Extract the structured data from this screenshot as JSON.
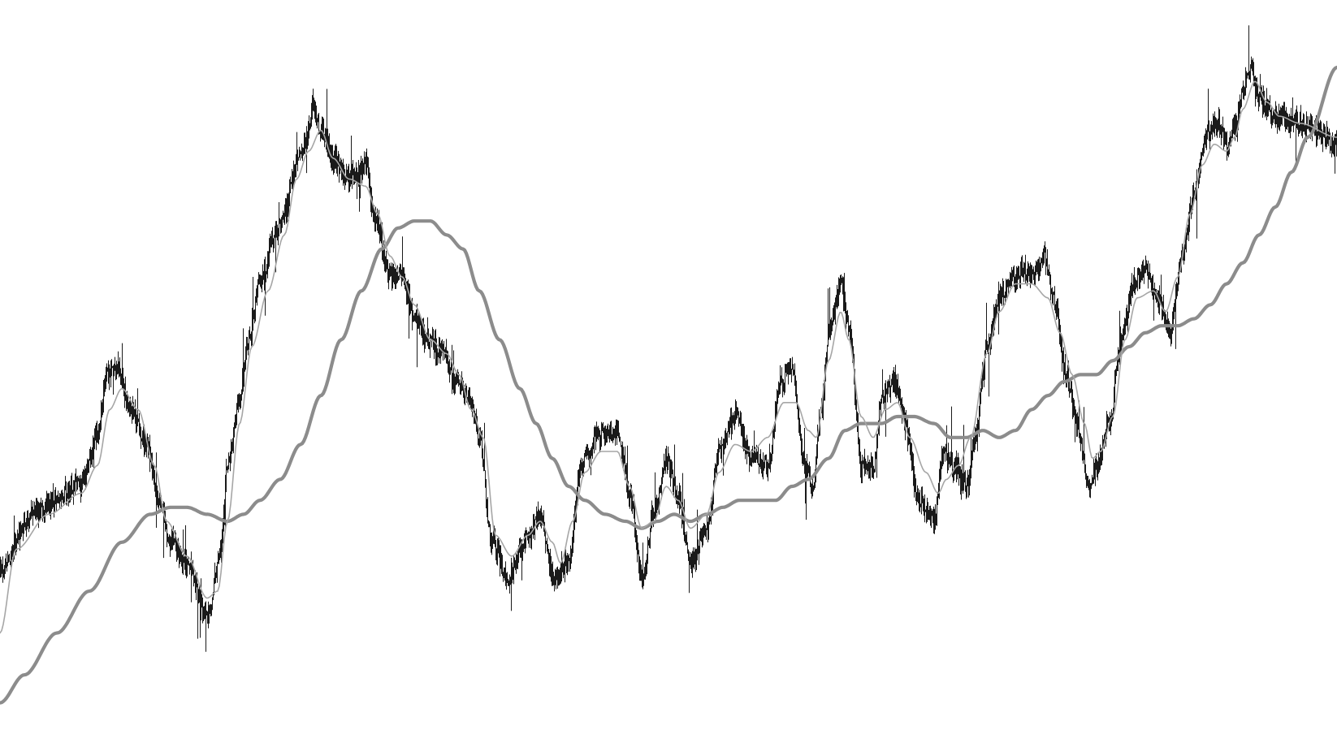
{
  "colors": {
    "background": "#ffffff",
    "bars": "#000000",
    "fast_ma": "#a6a6a6",
    "slow_ma": "#8c8c8c"
  },
  "chart_data": {
    "type": "line",
    "title": "",
    "xlabel": "",
    "ylabel": "",
    "grid": false,
    "legend": "none",
    "ylim": [
      0,
      100
    ],
    "x_count": 1646,
    "anchors": {
      "price": [
        [
          0,
          23
        ],
        [
          40,
          31
        ],
        [
          80,
          34
        ],
        [
          100,
          36
        ],
        [
          120,
          42
        ],
        [
          130,
          51
        ],
        [
          145,
          52
        ],
        [
          160,
          46
        ],
        [
          180,
          41
        ],
        [
          195,
          33
        ],
        [
          210,
          27
        ],
        [
          230,
          24
        ],
        [
          255,
          16
        ],
        [
          270,
          25
        ],
        [
          280,
          38
        ],
        [
          295,
          48
        ],
        [
          305,
          56
        ],
        [
          320,
          64
        ],
        [
          335,
          70
        ],
        [
          350,
          74
        ],
        [
          362,
          80
        ],
        [
          372,
          83
        ],
        [
          385,
          89
        ],
        [
          395,
          86
        ],
        [
          410,
          82
        ],
        [
          430,
          79
        ],
        [
          450,
          81
        ],
        [
          462,
          73
        ],
        [
          480,
          65
        ],
        [
          495,
          65
        ],
        [
          510,
          59
        ],
        [
          525,
          56
        ],
        [
          545,
          54
        ],
        [
          560,
          50
        ],
        [
          575,
          48
        ],
        [
          590,
          42
        ],
        [
          605,
          27
        ],
        [
          625,
          22
        ],
        [
          645,
          27
        ],
        [
          665,
          31
        ],
        [
          680,
          22
        ],
        [
          700,
          24
        ],
        [
          715,
          38
        ],
        [
          735,
          42
        ],
        [
          760,
          43
        ],
        [
          775,
          34
        ],
        [
          790,
          22
        ],
        [
          805,
          31
        ],
        [
          820,
          39
        ],
        [
          835,
          33
        ],
        [
          850,
          24
        ],
        [
          870,
          29
        ],
        [
          885,
          40
        ],
        [
          905,
          45
        ],
        [
          925,
          39
        ],
        [
          945,
          38
        ],
        [
          960,
          50
        ],
        [
          975,
          52
        ],
        [
          990,
          38
        ],
        [
          1000,
          35
        ],
        [
          1010,
          46
        ],
        [
          1020,
          57
        ],
        [
          1035,
          64
        ],
        [
          1045,
          58
        ],
        [
          1060,
          38
        ],
        [
          1075,
          37
        ],
        [
          1085,
          48
        ],
        [
          1100,
          50
        ],
        [
          1115,
          44
        ],
        [
          1130,
          33
        ],
        [
          1150,
          30
        ],
        [
          1160,
          40
        ],
        [
          1175,
          38
        ],
        [
          1190,
          35
        ],
        [
          1200,
          42
        ],
        [
          1215,
          55
        ],
        [
          1230,
          62
        ],
        [
          1245,
          65
        ],
        [
          1260,
          66
        ],
        [
          1270,
          65
        ],
        [
          1285,
          68
        ],
        [
          1300,
          61
        ],
        [
          1310,
          52
        ],
        [
          1325,
          44
        ],
        [
          1340,
          35
        ],
        [
          1350,
          38
        ],
        [
          1365,
          44
        ],
        [
          1380,
          56
        ],
        [
          1395,
          64
        ],
        [
          1410,
          66
        ],
        [
          1425,
          62
        ],
        [
          1440,
          57
        ],
        [
          1455,
          68
        ],
        [
          1470,
          77
        ],
        [
          1485,
          85
        ],
        [
          1500,
          87
        ],
        [
          1510,
          84
        ],
        [
          1520,
          86
        ],
        [
          1530,
          92
        ],
        [
          1540,
          95
        ],
        [
          1550,
          91
        ],
        [
          1560,
          89
        ],
        [
          1570,
          88
        ],
        [
          1600,
          87
        ],
        [
          1646,
          84
        ]
      ],
      "fast_ma": [
        [
          0,
          14
        ],
        [
          20,
          26
        ],
        [
          60,
          31
        ],
        [
          100,
          34
        ],
        [
          120,
          38
        ],
        [
          135,
          46
        ],
        [
          150,
          49
        ],
        [
          170,
          46
        ],
        [
          190,
          38
        ],
        [
          205,
          30
        ],
        [
          230,
          25
        ],
        [
          255,
          19
        ],
        [
          268,
          20
        ],
        [
          280,
          30
        ],
        [
          295,
          44
        ],
        [
          310,
          55
        ],
        [
          330,
          63
        ],
        [
          350,
          71
        ],
        [
          365,
          79
        ],
        [
          380,
          83
        ],
        [
          395,
          86
        ],
        [
          410,
          82
        ],
        [
          430,
          79
        ],
        [
          450,
          78
        ],
        [
          465,
          74
        ],
        [
          480,
          68
        ],
        [
          495,
          65
        ],
        [
          510,
          61
        ],
        [
          530,
          56
        ],
        [
          550,
          54
        ],
        [
          565,
          51
        ],
        [
          580,
          46
        ],
        [
          595,
          42
        ],
        [
          610,
          28
        ],
        [
          630,
          25
        ],
        [
          650,
          28
        ],
        [
          665,
          30
        ],
        [
          680,
          27
        ],
        [
          690,
          24
        ],
        [
          705,
          30
        ],
        [
          720,
          37
        ],
        [
          740,
          40
        ],
        [
          760,
          40
        ],
        [
          775,
          35
        ],
        [
          790,
          29
        ],
        [
          805,
          30
        ],
        [
          820,
          35
        ],
        [
          835,
          33
        ],
        [
          850,
          29
        ],
        [
          870,
          31
        ],
        [
          885,
          37
        ],
        [
          905,
          41
        ],
        [
          925,
          40
        ],
        [
          945,
          42
        ],
        [
          965,
          47
        ],
        [
          980,
          47
        ],
        [
          995,
          43
        ],
        [
          1005,
          42
        ],
        [
          1020,
          53
        ],
        [
          1035,
          60
        ],
        [
          1045,
          56
        ],
        [
          1060,
          45
        ],
        [
          1075,
          42
        ],
        [
          1090,
          46
        ],
        [
          1105,
          47
        ],
        [
          1120,
          42
        ],
        [
          1140,
          37
        ],
        [
          1155,
          34
        ],
        [
          1165,
          36
        ],
        [
          1180,
          38
        ],
        [
          1195,
          42
        ],
        [
          1215,
          54
        ],
        [
          1230,
          60
        ],
        [
          1250,
          64
        ],
        [
          1270,
          64
        ],
        [
          1290,
          62
        ],
        [
          1305,
          57
        ],
        [
          1320,
          51
        ],
        [
          1335,
          44
        ],
        [
          1345,
          39
        ],
        [
          1355,
          40
        ],
        [
          1370,
          45
        ],
        [
          1385,
          56
        ],
        [
          1400,
          62
        ],
        [
          1420,
          63
        ],
        [
          1435,
          60
        ],
        [
          1450,
          65
        ],
        [
          1465,
          74
        ],
        [
          1480,
          81
        ],
        [
          1495,
          84
        ],
        [
          1510,
          83
        ],
        [
          1520,
          85
        ],
        [
          1530,
          89
        ],
        [
          1545,
          93
        ],
        [
          1560,
          90
        ],
        [
          1575,
          88
        ],
        [
          1600,
          87
        ],
        [
          1646,
          85
        ]
      ],
      "slow_ma": [
        [
          0,
          4
        ],
        [
          30,
          8
        ],
        [
          70,
          14
        ],
        [
          110,
          20
        ],
        [
          150,
          27
        ],
        [
          185,
          31
        ],
        [
          210,
          32
        ],
        [
          230,
          32
        ],
        [
          255,
          31
        ],
        [
          280,
          30
        ],
        [
          300,
          31
        ],
        [
          320,
          33
        ],
        [
          345,
          36
        ],
        [
          370,
          41
        ],
        [
          395,
          48
        ],
        [
          420,
          56
        ],
        [
          445,
          63
        ],
        [
          470,
          69
        ],
        [
          490,
          72
        ],
        [
          510,
          73
        ],
        [
          530,
          73
        ],
        [
          550,
          71
        ],
        [
          570,
          69
        ],
        [
          590,
          63
        ],
        [
          615,
          56
        ],
        [
          640,
          49
        ],
        [
          660,
          44
        ],
        [
          680,
          39
        ],
        [
          700,
          35
        ],
        [
          720,
          33
        ],
        [
          745,
          31
        ],
        [
          770,
          30
        ],
        [
          790,
          29
        ],
        [
          810,
          30
        ],
        [
          830,
          31
        ],
        [
          850,
          30
        ],
        [
          870,
          31
        ],
        [
          890,
          32
        ],
        [
          910,
          33
        ],
        [
          930,
          33
        ],
        [
          955,
          33
        ],
        [
          975,
          35
        ],
        [
          995,
          36
        ],
        [
          1020,
          39
        ],
        [
          1040,
          43
        ],
        [
          1060,
          44
        ],
        [
          1085,
          44
        ],
        [
          1105,
          45
        ],
        [
          1125,
          45
        ],
        [
          1150,
          44
        ],
        [
          1170,
          42
        ],
        [
          1190,
          42
        ],
        [
          1210,
          43
        ],
        [
          1230,
          42
        ],
        [
          1250,
          43
        ],
        [
          1270,
          46
        ],
        [
          1290,
          48
        ],
        [
          1310,
          50
        ],
        [
          1330,
          51
        ],
        [
          1350,
          51
        ],
        [
          1370,
          53
        ],
        [
          1390,
          55
        ],
        [
          1410,
          57
        ],
        [
          1430,
          58
        ],
        [
          1450,
          58
        ],
        [
          1470,
          59
        ],
        [
          1490,
          61
        ],
        [
          1510,
          64
        ],
        [
          1530,
          67
        ],
        [
          1550,
          71
        ],
        [
          1570,
          75
        ],
        [
          1590,
          80
        ],
        [
          1610,
          85
        ],
        [
          1646,
          95
        ]
      ]
    },
    "series": [
      {
        "role": "bars"
      },
      {
        "role": "fast_ma"
      },
      {
        "role": "slow_ma"
      }
    ]
  }
}
